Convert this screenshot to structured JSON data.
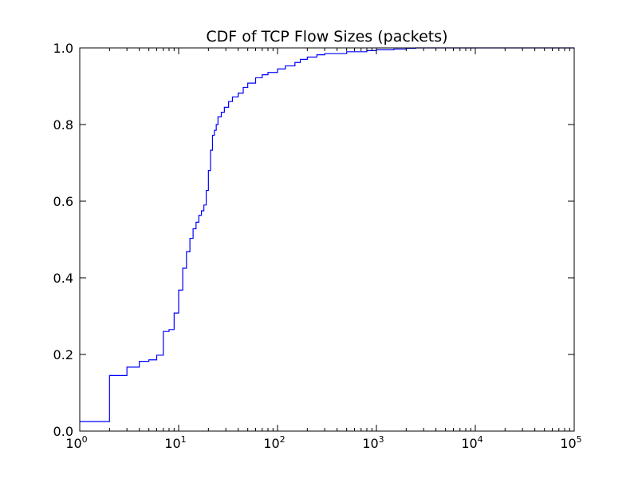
{
  "chart_data": {
    "type": "line",
    "title": "CDF of TCP Flow Sizes (packets)",
    "xlabel": "",
    "ylabel": "",
    "xscale": "log",
    "xlim": [
      1,
      100000
    ],
    "ylim": [
      0.0,
      1.0
    ],
    "grid": false,
    "legend": "none",
    "line_color": "#0000ff",
    "x_tick_labels": [
      {
        "base": "10",
        "exp": "0"
      },
      {
        "base": "10",
        "exp": "1"
      },
      {
        "base": "10",
        "exp": "2"
      },
      {
        "base": "10",
        "exp": "3"
      },
      {
        "base": "10",
        "exp": "4"
      },
      {
        "base": "10",
        "exp": "5"
      }
    ],
    "y_ticks": [
      0.0,
      0.2,
      0.4,
      0.6,
      0.8,
      1.0
    ],
    "y_tick_labels": [
      "0.0",
      "0.2",
      "0.4",
      "0.6",
      "0.8",
      "1.0"
    ],
    "series": [
      {
        "style": "step",
        "points": [
          [
            1,
            0.025
          ],
          [
            2,
            0.145
          ],
          [
            3,
            0.167
          ],
          [
            4,
            0.182
          ],
          [
            5,
            0.186
          ],
          [
            6,
            0.198
          ],
          [
            7,
            0.26
          ],
          [
            8,
            0.265
          ],
          [
            9,
            0.308
          ],
          [
            10,
            0.368
          ],
          [
            11,
            0.425
          ],
          [
            12,
            0.468
          ],
          [
            13,
            0.503
          ],
          [
            14,
            0.528
          ],
          [
            15,
            0.545
          ],
          [
            16,
            0.563
          ],
          [
            17,
            0.575
          ],
          [
            18,
            0.59
          ],
          [
            19,
            0.628
          ],
          [
            20,
            0.68
          ],
          [
            21,
            0.733
          ],
          [
            22,
            0.772
          ],
          [
            23,
            0.785
          ],
          [
            24,
            0.8
          ],
          [
            25,
            0.82
          ],
          [
            27,
            0.832
          ],
          [
            29,
            0.845
          ],
          [
            32,
            0.86
          ],
          [
            35,
            0.872
          ],
          [
            40,
            0.882
          ],
          [
            45,
            0.897
          ],
          [
            50,
            0.908
          ],
          [
            60,
            0.922
          ],
          [
            70,
            0.93
          ],
          [
            80,
            0.936
          ],
          [
            100,
            0.945
          ],
          [
            120,
            0.953
          ],
          [
            150,
            0.962
          ],
          [
            170,
            0.97
          ],
          [
            200,
            0.976
          ],
          [
            250,
            0.982
          ],
          [
            300,
            0.985
          ],
          [
            500,
            0.99
          ],
          [
            800,
            0.993
          ],
          [
            1000,
            0.995
          ],
          [
            1500,
            0.997
          ],
          [
            2000,
            0.999
          ],
          [
            2500,
            1.0
          ],
          [
            4000,
            1.0
          ]
        ]
      }
    ]
  }
}
